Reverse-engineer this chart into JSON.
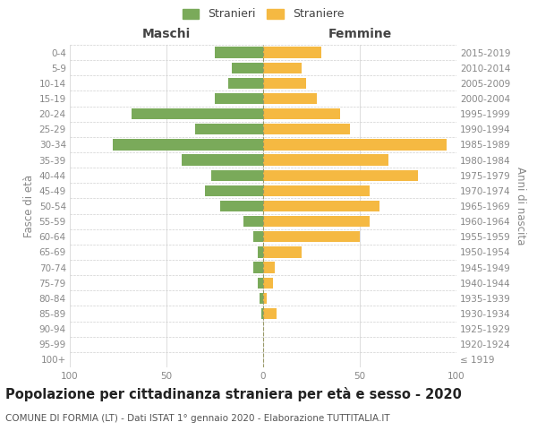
{
  "age_groups": [
    "100+",
    "95-99",
    "90-94",
    "85-89",
    "80-84",
    "75-79",
    "70-74",
    "65-69",
    "60-64",
    "55-59",
    "50-54",
    "45-49",
    "40-44",
    "35-39",
    "30-34",
    "25-29",
    "20-24",
    "15-19",
    "10-14",
    "5-9",
    "0-4"
  ],
  "birth_years": [
    "≤ 1919",
    "1920-1924",
    "1925-1929",
    "1930-1934",
    "1935-1939",
    "1940-1944",
    "1945-1949",
    "1950-1954",
    "1955-1959",
    "1960-1964",
    "1965-1969",
    "1970-1974",
    "1975-1979",
    "1980-1984",
    "1985-1989",
    "1990-1994",
    "1995-1999",
    "2000-2004",
    "2005-2009",
    "2010-2014",
    "2015-2019"
  ],
  "males": [
    0,
    0,
    0,
    1,
    2,
    3,
    5,
    3,
    5,
    10,
    22,
    30,
    27,
    42,
    78,
    35,
    68,
    25,
    18,
    16,
    25
  ],
  "females": [
    0,
    0,
    0,
    7,
    2,
    5,
    6,
    20,
    50,
    55,
    60,
    55,
    80,
    65,
    95,
    45,
    40,
    28,
    22,
    20,
    30
  ],
  "male_color": "#7aaa5a",
  "female_color": "#f5b942",
  "title": "Popolazione per cittadinanza straniera per età e sesso - 2020",
  "subtitle": "COMUNE DI FORMIA (LT) - Dati ISTAT 1° gennaio 2020 - Elaborazione TUTTITALIA.IT",
  "ylabel_left": "Fasce di età",
  "ylabel_right": "Anni di nascita",
  "xlabel_left": "Maschi",
  "xlabel_right": "Femmine",
  "legend_male": "Stranieri",
  "legend_female": "Straniere",
  "xlim": 100,
  "background_color": "#ffffff",
  "grid_color": "#d0d0d0",
  "title_fontsize": 10.5,
  "subtitle_fontsize": 7.5,
  "axis_label_fontsize": 8.5,
  "tick_fontsize": 7.5
}
